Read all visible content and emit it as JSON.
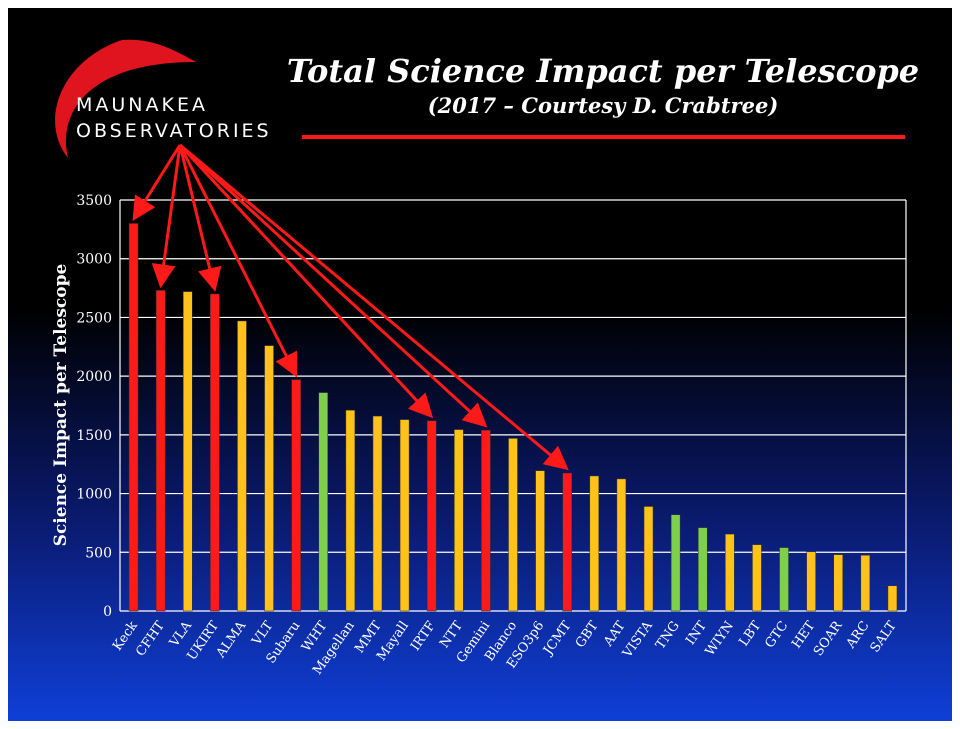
{
  "logo": {
    "line1": "MAUNAKEA",
    "line2": "OBSERVATORIES"
  },
  "colors": {
    "red": "#ff1a1a",
    "yellow": "#ffc21a",
    "green": "#7ed04a",
    "arrow": "#ff1a1a",
    "grid": "#ffffff",
    "logo_arc": "#e0141e"
  },
  "chart_data": {
    "type": "bar",
    "title": "Total Science Impact per Telescope",
    "subtitle": "(2017 – Courtesy D. Crabtree)",
    "xlabel": "",
    "ylabel": "Science Impact per Telescope",
    "ylim": [
      0,
      3500
    ],
    "yticks": [
      0,
      500,
      1000,
      1500,
      2000,
      2500,
      3000,
      3500
    ],
    "grid": true,
    "categories": [
      "Keck",
      "CFHT",
      "VLA",
      "UKIRT",
      "ALMA",
      "VLT",
      "Subaru",
      "WHT",
      "Magellan",
      "MMT",
      "Mayall",
      "IRTF",
      "NTT",
      "Gemini",
      "Blanco",
      "ESO3p6",
      "JCMT",
      "GBT",
      "AAT",
      "VISTA",
      "TNG",
      "INT",
      "WIYN",
      "LBT",
      "GTC",
      "HET",
      "SOAR",
      "ARC",
      "SALT"
    ],
    "values": [
      3300,
      2730,
      2720,
      2700,
      2470,
      2260,
      1970,
      1860,
      1710,
      1660,
      1630,
      1620,
      1545,
      1540,
      1470,
      1195,
      1175,
      1150,
      1125,
      890,
      820,
      710,
      655,
      565,
      540,
      505,
      480,
      475,
      215
    ],
    "bar_colors": [
      "red",
      "red",
      "yellow",
      "red",
      "yellow",
      "yellow",
      "red",
      "green",
      "yellow",
      "yellow",
      "yellow",
      "red",
      "yellow",
      "red",
      "yellow",
      "yellow",
      "red",
      "yellow",
      "yellow",
      "yellow",
      "green",
      "green",
      "yellow",
      "yellow",
      "green",
      "yellow",
      "yellow",
      "yellow",
      "yellow"
    ],
    "annotations": {
      "arrows_from": "MAUNAKEA OBSERVATORIES logo",
      "arrows_to": [
        "Keck",
        "CFHT",
        "UKIRT",
        "Subaru",
        "IRTF",
        "Gemini",
        "JCMT"
      ]
    }
  }
}
